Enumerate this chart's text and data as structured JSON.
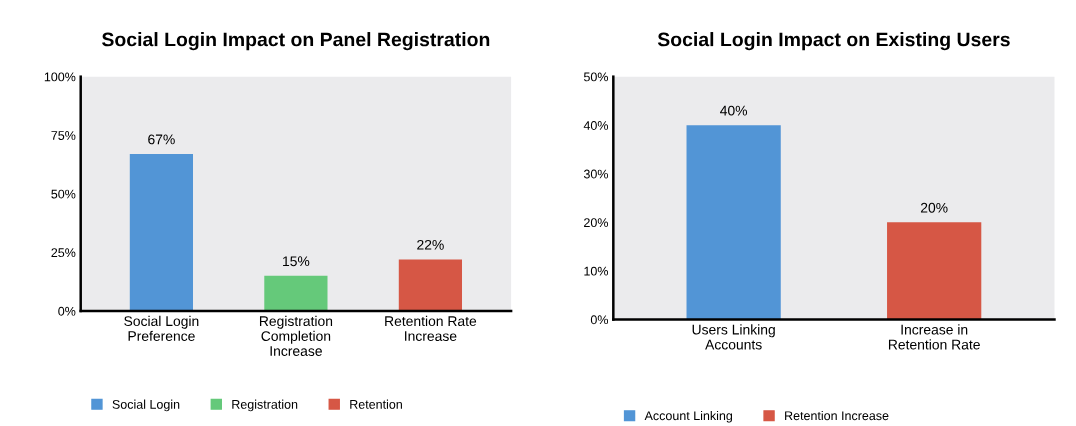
{
  "chart_data": [
    {
      "type": "bar",
      "title": "Social Login Impact on Panel Registration",
      "categories": [
        "Social Login\nPreference",
        "Registration\nCompletion\nIncrease",
        "Retention Rate\nIncrease"
      ],
      "series": [
        {
          "name": "Social Login",
          "color": "#5295d6",
          "values": [
            67,
            null,
            null
          ],
          "value_labels": [
            "67%",
            null,
            null
          ]
        },
        {
          "name": "Registration",
          "color": "#65c97a",
          "values": [
            null,
            15,
            null
          ],
          "value_labels": [
            null,
            "15%",
            null
          ]
        },
        {
          "name": "Retention",
          "color": "#d65745",
          "values": [
            null,
            null,
            22
          ],
          "value_labels": [
            null,
            null,
            "22%"
          ]
        }
      ],
      "ylim": [
        0,
        100
      ],
      "yticks": [
        {
          "value": 0,
          "label": "0%"
        },
        {
          "value": 25,
          "label": "25%"
        },
        {
          "value": 50,
          "label": "50%"
        },
        {
          "value": 75,
          "label": "75%"
        },
        {
          "value": 100,
          "label": "100%"
        }
      ],
      "grid": false,
      "legend": "bottom left"
    },
    {
      "type": "bar",
      "title": "Social Login Impact on Existing Users",
      "categories": [
        "Users Linking\nAccounts",
        "Increase in\nRetention Rate"
      ],
      "series": [
        {
          "name": "Account Linking",
          "color": "#5295d6",
          "values": [
            40,
            null
          ],
          "value_labels": [
            "40%",
            null
          ]
        },
        {
          "name": "Retention Increase",
          "color": "#d65745",
          "values": [
            null,
            20
          ],
          "value_labels": [
            null,
            "20%"
          ]
        }
      ],
      "ylim": [
        0,
        50
      ],
      "yticks": [
        {
          "value": 0,
          "label": "0%"
        },
        {
          "value": 10,
          "label": "10%"
        },
        {
          "value": 20,
          "label": "20%"
        },
        {
          "value": 30,
          "label": "30%"
        },
        {
          "value": 40,
          "label": "40%"
        },
        {
          "value": 50,
          "label": "50%"
        }
      ],
      "grid": false,
      "legend": "bottom left"
    }
  ]
}
